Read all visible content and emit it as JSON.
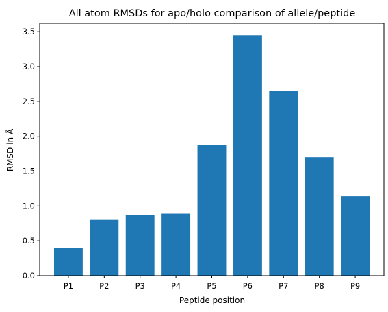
{
  "chart_data": {
    "type": "bar",
    "title": "All atom RMSDs for apo/holo comparison of allele/peptide",
    "xlabel": "Peptide position",
    "ylabel": "RMSD in Å",
    "categories": [
      "P1",
      "P2",
      "P3",
      "P4",
      "P5",
      "P6",
      "P7",
      "P8",
      "P9"
    ],
    "values": [
      0.4,
      0.8,
      0.87,
      0.89,
      1.87,
      3.45,
      2.65,
      1.7,
      1.14
    ],
    "ylim": [
      0,
      3.62
    ],
    "yticks": [
      "0.0",
      "0.5",
      "1.0",
      "1.5",
      "2.0",
      "2.5",
      "3.0",
      "3.5"
    ],
    "bar_color": "#1f77b4",
    "grid": false
  }
}
